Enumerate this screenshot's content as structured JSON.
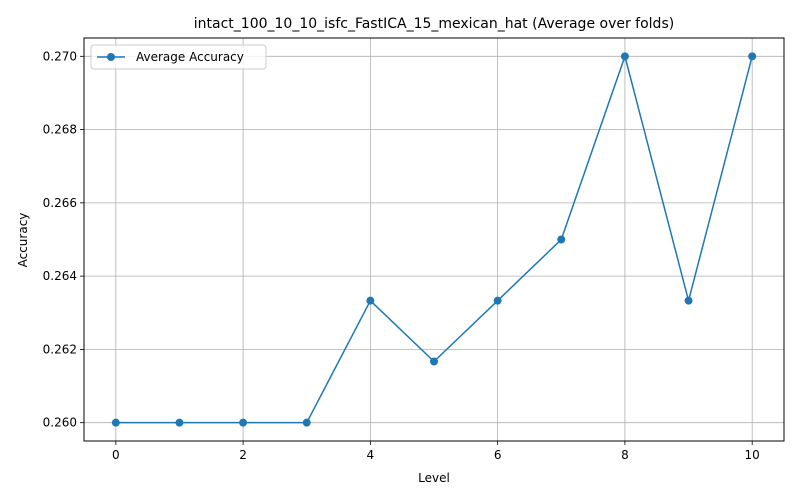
{
  "chart_data": {
    "type": "line",
    "title": "intact_100_10_10_isfc_FastICA_15_mexican_hat (Average over folds)",
    "xlabel": "Level",
    "ylabel": "Accuracy",
    "x": [
      0,
      1,
      2,
      3,
      4,
      5,
      6,
      7,
      8,
      9,
      10
    ],
    "series": [
      {
        "name": "Average Accuracy",
        "values": [
          0.26,
          0.26,
          0.26,
          0.26,
          0.26333,
          0.26167,
          0.26333,
          0.265,
          0.27,
          0.26333,
          0.27
        ],
        "color": "#1f77b4",
        "marker": "circle"
      }
    ],
    "xlim": [
      -0.5,
      10.5
    ],
    "ylim": [
      0.2595,
      0.2705
    ],
    "xticks": [
      0,
      2,
      4,
      6,
      8,
      10
    ],
    "xtick_labels": [
      "0",
      "2",
      "4",
      "6",
      "8",
      "10"
    ],
    "yticks": [
      0.26,
      0.262,
      0.264,
      0.266,
      0.268,
      0.27
    ],
    "ytick_labels": [
      "0.260",
      "0.262",
      "0.264",
      "0.266",
      "0.268",
      "0.270"
    ],
    "grid": true,
    "legend_position": "top-left"
  }
}
